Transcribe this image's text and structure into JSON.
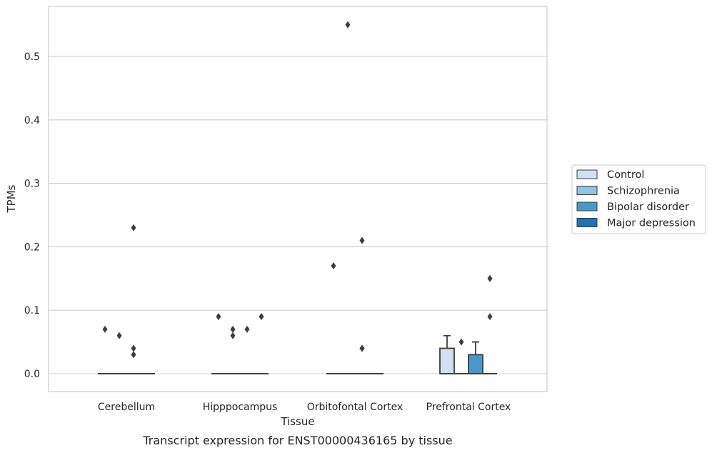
{
  "chart_data": {
    "type": "box",
    "xlabel": "Tissue",
    "ylabel": "TPMs",
    "caption": "Transcript expression for ENST00000436165 by tissue",
    "ylim": [
      -0.028,
      0.58
    ],
    "yticks": [
      0.0,
      0.1,
      0.2,
      0.3,
      0.4,
      0.5
    ],
    "ytick_labels": [
      "0.0",
      "0.1",
      "0.2",
      "0.3",
      "0.4",
      "0.5"
    ],
    "grid": true,
    "legend_position": "right",
    "categories": [
      "Cerebellum",
      "Hipppocampus",
      "Orbitofontal Cortex",
      "Prefrontal Cortex"
    ],
    "series": [
      {
        "name": "Control",
        "color": "#d0e1f2",
        "boxes": [
          {
            "q1": 0,
            "median": 0,
            "q3": 0,
            "whisker_low": 0,
            "whisker_high": 0,
            "outliers": [
              0.07
            ]
          },
          {
            "q1": 0,
            "median": 0,
            "q3": 0,
            "whisker_low": 0,
            "whisker_high": 0,
            "outliers": [
              0.09
            ]
          },
          {
            "q1": 0,
            "median": 0,
            "q3": 0,
            "whisker_low": 0,
            "whisker_high": 0,
            "outliers": [
              0.17
            ]
          },
          {
            "q1": 0,
            "median": 0,
            "q3": 0.04,
            "whisker_low": 0,
            "whisker_high": 0.06,
            "outliers": []
          }
        ]
      },
      {
        "name": "Schizophrenia",
        "color": "#94c4df",
        "boxes": [
          {
            "q1": 0,
            "median": 0,
            "q3": 0,
            "whisker_low": 0,
            "whisker_high": 0,
            "outliers": [
              0.06
            ]
          },
          {
            "q1": 0,
            "median": 0,
            "q3": 0,
            "whisker_low": 0,
            "whisker_high": 0,
            "outliers": [
              0.06,
              0.07
            ]
          },
          {
            "q1": 0,
            "median": 0,
            "q3": 0,
            "whisker_low": 0,
            "whisker_high": 0,
            "outliers": [
              0.55
            ]
          },
          {
            "q1": 0,
            "median": 0,
            "q3": 0,
            "whisker_low": 0,
            "whisker_high": 0,
            "outliers": [
              0.05
            ]
          }
        ]
      },
      {
        "name": "Bipolar disorder",
        "color": "#4a98c9",
        "boxes": [
          {
            "q1": 0,
            "median": 0,
            "q3": 0,
            "whisker_low": 0,
            "whisker_high": 0,
            "outliers": [
              0.23,
              0.04,
              0.03
            ]
          },
          {
            "q1": 0,
            "median": 0,
            "q3": 0,
            "whisker_low": 0,
            "whisker_high": 0,
            "outliers": [
              0.07
            ]
          },
          {
            "q1": 0,
            "median": 0,
            "q3": 0,
            "whisker_low": 0,
            "whisker_high": 0,
            "outliers": [
              0.04,
              0.21,
              0.04
            ]
          },
          {
            "q1": 0,
            "median": 0,
            "q3": 0.03,
            "whisker_low": 0,
            "whisker_high": 0.05,
            "outliers": []
          }
        ]
      },
      {
        "name": "Major depression",
        "color": "#2171b5",
        "boxes": [
          {
            "q1": 0,
            "median": 0,
            "q3": 0,
            "whisker_low": 0,
            "whisker_high": 0,
            "outliers": []
          },
          {
            "q1": 0,
            "median": 0,
            "q3": 0,
            "whisker_low": 0,
            "whisker_high": 0,
            "outliers": [
              0.09
            ]
          },
          {
            "q1": 0,
            "median": 0,
            "q3": 0,
            "whisker_low": 0,
            "whisker_high": 0,
            "outliers": []
          },
          {
            "q1": 0,
            "median": 0,
            "q3": 0,
            "whisker_low": 0,
            "whisker_high": 0,
            "outliers": [
              0.15,
              0.09
            ]
          }
        ]
      }
    ]
  }
}
